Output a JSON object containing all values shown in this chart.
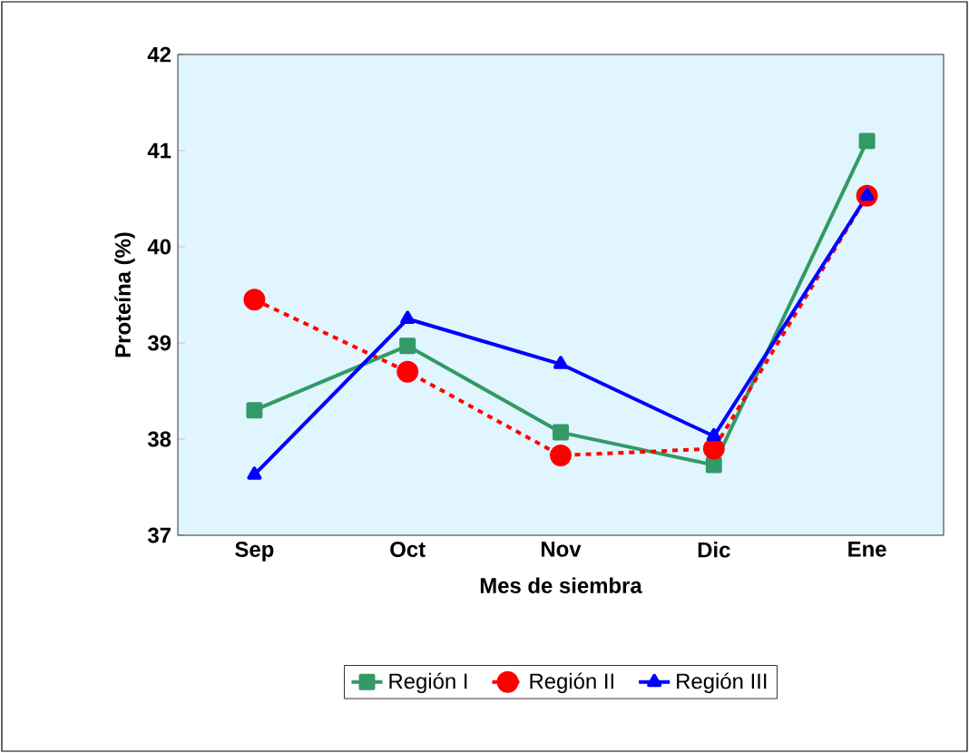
{
  "chart_data": {
    "type": "line",
    "xlabel": "Mes de siembra",
    "ylabel": "Proteína (%)",
    "categories": [
      "Sep",
      "Oct",
      "Nov",
      "Dic",
      "Ene"
    ],
    "series": [
      {
        "name": "Región I",
        "color": "#339966",
        "marker": "square",
        "line_style": "solid",
        "values": [
          38.3,
          38.97,
          38.07,
          37.73,
          41.1
        ]
      },
      {
        "name": "Región II",
        "color": "#ff0000",
        "marker": "circle",
        "line_style": "dashed",
        "values": [
          39.45,
          38.7,
          37.83,
          37.9,
          40.53
        ]
      },
      {
        "name": "Región III",
        "color": "#0000ff",
        "marker": "triangle",
        "line_style": "solid",
        "values": [
          37.63,
          39.25,
          38.78,
          38.03,
          40.53
        ]
      }
    ],
    "ylim": [
      37,
      42
    ],
    "yticks": [
      37,
      38,
      39,
      40,
      41,
      42
    ],
    "grid": false,
    "legend": "bottom"
  }
}
